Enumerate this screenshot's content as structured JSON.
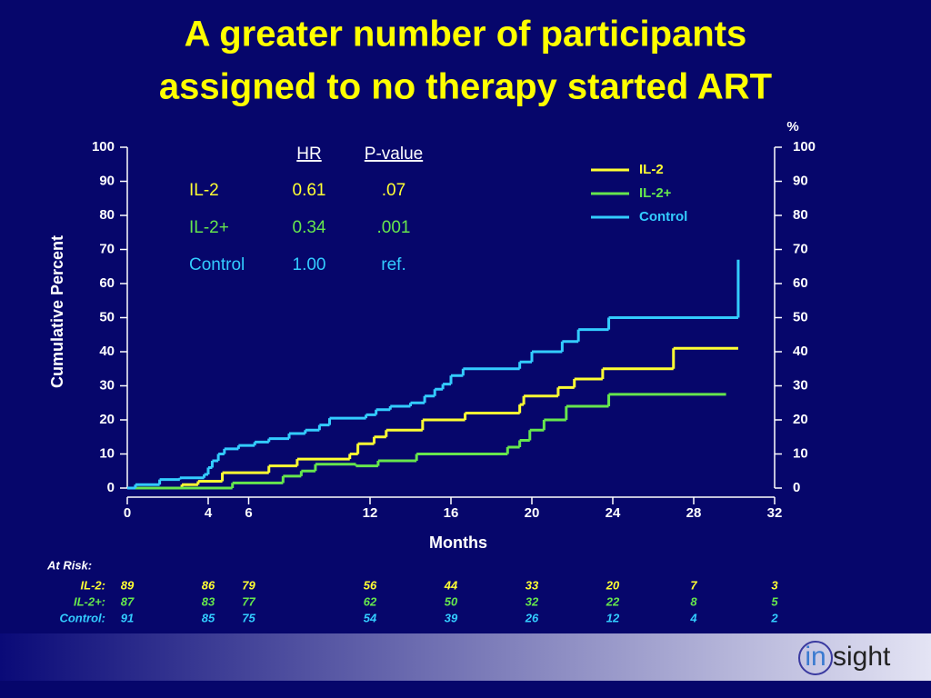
{
  "chart_data": {
    "type": "step",
    "title": [
      "A greater number of participants",
      "assigned to no therapy started ART"
    ],
    "y_label": "Cumulative Percent",
    "x_label": "Months",
    "y2_label": "%",
    "xlim": [
      0,
      32
    ],
    "xticks": [
      0,
      4,
      6,
      12,
      16,
      20,
      24,
      28,
      32
    ],
    "ylim": [
      0,
      100
    ],
    "yticks": [
      0,
      10,
      20,
      30,
      40,
      50,
      60,
      70,
      80,
      90,
      100
    ],
    "y2lim": [
      0,
      100
    ],
    "y2ticks": [
      0,
      10,
      20,
      30,
      40,
      50,
      60,
      70,
      80,
      90,
      100
    ],
    "legend": "top-right",
    "series": [
      {
        "name": "IL-2",
        "color": "#ffff33",
        "x": [
          0,
          2.7,
          3.5,
          4.7,
          7,
          8.4,
          11,
          11.4,
          12.2,
          12.8,
          14.6,
          16.7,
          19.4,
          19.6,
          21.3,
          22.1,
          23.5,
          27,
          30.2
        ],
        "values": [
          0,
          1,
          2,
          4.5,
          6.5,
          8.5,
          10,
          13,
          15,
          17,
          20,
          22,
          24.5,
          27,
          29.5,
          32,
          35,
          41,
          41
        ]
      },
      {
        "name": "IL-2+",
        "color": "#66e64d",
        "x": [
          0,
          5.2,
          7.7,
          8.6,
          9.3,
          11.3,
          12.4,
          14.3,
          18.8,
          19.4,
          19.9,
          20.6,
          21.7,
          23.8,
          29.6
        ],
        "values": [
          0,
          1.5,
          3.5,
          5,
          7,
          6.5,
          8,
          10,
          12,
          14,
          17,
          20,
          24,
          27.5,
          27.5
        ]
      },
      {
        "name": "Control",
        "color": "#33ccff",
        "x": [
          0,
          0.4,
          1.6,
          2.6,
          3.8,
          4,
          4.2,
          4.5,
          4.8,
          5.5,
          6.3,
          7,
          8,
          8.8,
          9.5,
          10,
          11.8,
          12.3,
          13,
          14,
          14.7,
          15.2,
          15.6,
          16,
          16.6,
          19.4,
          20,
          21.5,
          22.3,
          23.8,
          30.2
        ],
        "values": [
          0,
          1,
          2.5,
          3,
          4,
          6,
          8,
          10,
          11.5,
          12.5,
          13.5,
          14.5,
          16,
          17,
          18.5,
          20.5,
          21.5,
          23,
          24,
          25,
          27,
          29,
          30.5,
          33,
          35,
          37,
          40,
          43,
          46.5,
          50,
          67
        ]
      }
    ],
    "hazard_table": {
      "headers": [
        "HR",
        "P-value"
      ],
      "rows": [
        [
          "IL-2",
          "0.61",
          ".07"
        ],
        [
          "IL-2+",
          "0.34",
          ".001"
        ],
        [
          "Control",
          "1.00",
          "ref."
        ]
      ]
    },
    "at_risk": {
      "title": "At Risk:",
      "rows": [
        {
          "label": "IL-2:",
          "values": [
            89,
            86,
            79,
            56,
            44,
            33,
            20,
            7,
            3
          ]
        },
        {
          "label": "IL-2+:",
          "values": [
            87,
            83,
            77,
            62,
            50,
            32,
            22,
            8,
            5
          ]
        },
        {
          "label": "Control:",
          "values": [
            91,
            85,
            75,
            54,
            39,
            26,
            12,
            4,
            2
          ]
        }
      ]
    },
    "logo": {
      "circled": "in",
      "rest": "sight"
    }
  }
}
